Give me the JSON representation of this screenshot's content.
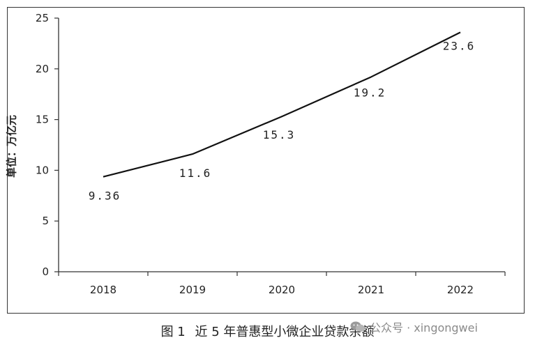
{
  "chart_data": {
    "type": "line",
    "categories": [
      "2018",
      "2019",
      "2020",
      "2021",
      "2022"
    ],
    "values": [
      9.36,
      11.6,
      15.3,
      19.2,
      23.6
    ],
    "data_labels": [
      "9.36",
      "11.6",
      "15.3",
      "19.2",
      "23.6"
    ],
    "ylabel": "单位：万亿元",
    "xlabel": "",
    "ylim": [
      0,
      25
    ],
    "yticks": [
      0,
      5,
      10,
      15,
      20,
      25
    ],
    "grid": false,
    "line_color": "#111111"
  },
  "caption": {
    "figure_no": "图 1",
    "title": "近 5 年普惠型小微企业贷款余额"
  },
  "watermark": {
    "text": "公众号 · xingongwei",
    "icon": "wechat-icon"
  }
}
